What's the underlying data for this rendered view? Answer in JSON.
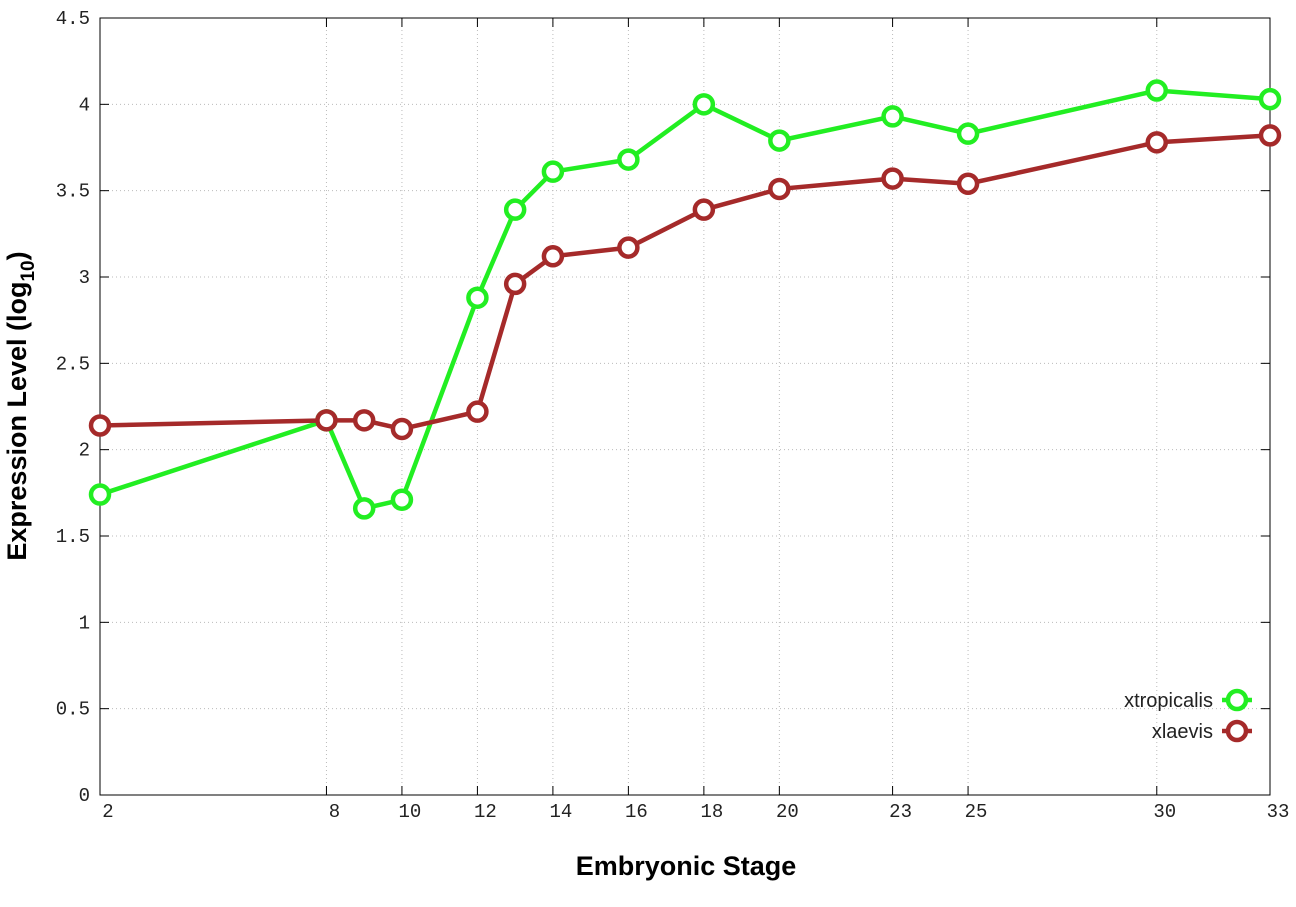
{
  "chart_data": {
    "type": "line",
    "x_label": "Embryonic Stage",
    "y_label": {
      "text": "Expression Level (log",
      "subscript": "10",
      "suffix": ")"
    },
    "x": [
      2,
      8,
      9,
      10,
      12,
      13,
      14,
      16,
      18,
      20,
      23,
      25,
      30,
      33
    ],
    "series": [
      {
        "name": "xtropicalis",
        "color": "#22ee22",
        "values": [
          1.74,
          2.17,
          1.66,
          1.71,
          2.88,
          3.39,
          3.61,
          3.68,
          4.0,
          3.79,
          3.93,
          3.83,
          4.08,
          4.03
        ]
      },
      {
        "name": "xlaevis",
        "color": "#a52a2a",
        "values": [
          2.14,
          2.17,
          2.17,
          2.12,
          2.22,
          2.96,
          3.12,
          3.17,
          3.39,
          3.51,
          3.57,
          3.54,
          3.78,
          3.82
        ]
      }
    ],
    "xlim": [
      2,
      33
    ],
    "xticks": [
      2,
      8,
      10,
      12,
      14,
      16,
      18,
      20,
      23,
      25,
      30,
      33
    ],
    "ylim": [
      0,
      4.5
    ],
    "yticks": [
      0,
      0.5,
      1,
      1.5,
      2,
      2.5,
      3,
      3.5,
      4,
      4.5
    ],
    "grid": true,
    "legend": "lower right"
  }
}
